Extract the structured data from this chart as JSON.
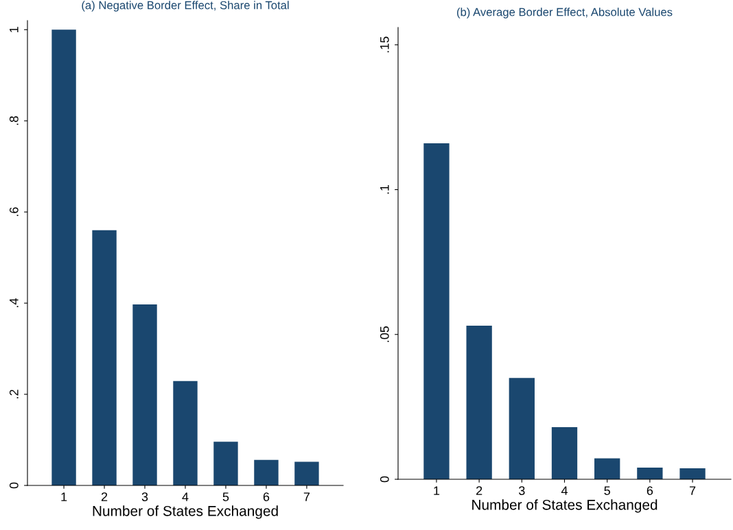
{
  "chart_data": [
    {
      "type": "bar",
      "title": "(a) Negative Border Effect, Share in Total",
      "xlabel": "Number of States Exchanged",
      "categories": [
        "1",
        "2",
        "3",
        "4",
        "5",
        "6",
        "7"
      ],
      "values": [
        1.0,
        0.56,
        0.397,
        0.229,
        0.096,
        0.056,
        0.052
      ],
      "color": "#1a476f",
      "ylim": [
        0,
        1.02
      ],
      "yticks": [
        {
          "value": 0,
          "label": "0"
        },
        {
          "value": 0.2,
          "label": ".2"
        },
        {
          "value": 0.4,
          "label": ".4"
        },
        {
          "value": 0.6,
          "label": ".6"
        },
        {
          "value": 0.8,
          "label": ".8"
        },
        {
          "value": 1,
          "label": "1"
        }
      ],
      "grid": false,
      "legend": false
    },
    {
      "type": "bar",
      "title": "(b) Average Border Effect, Absolute Values",
      "xlabel": "Number of States Exchanged",
      "categories": [
        "1",
        "2",
        "3",
        "4",
        "5",
        "6",
        "7"
      ],
      "values": [
        0.116,
        0.053,
        0.035,
        0.018,
        0.0072,
        0.004,
        0.0038
      ],
      "color": "#1a476f",
      "ylim": [
        0,
        0.156
      ],
      "yticks": [
        {
          "value": 0,
          "label": "0"
        },
        {
          "value": 0.05,
          "label": ".05"
        },
        {
          "value": 0.1,
          "label": ".1"
        },
        {
          "value": 0.15,
          "label": ".15"
        }
      ],
      "grid": false,
      "legend": false
    }
  ]
}
